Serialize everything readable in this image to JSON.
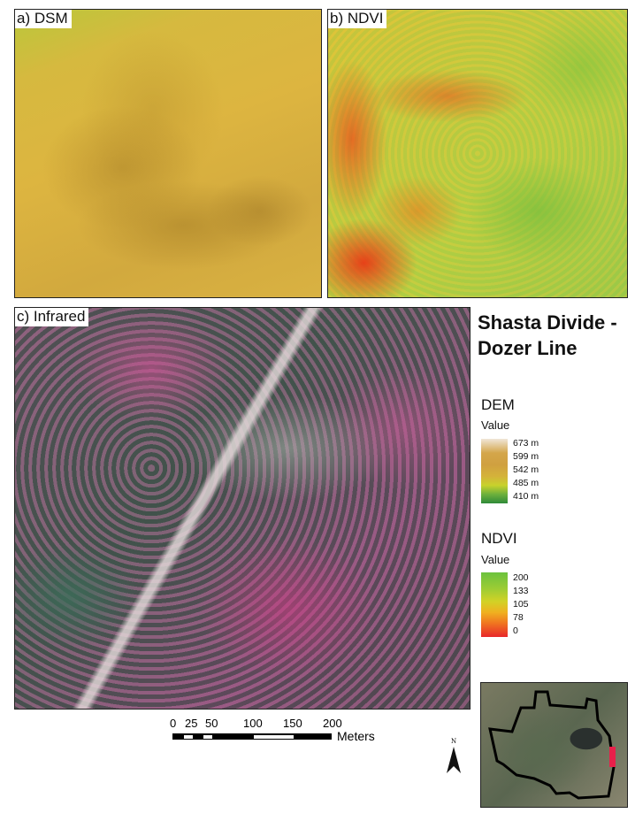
{
  "panels": {
    "dsm_label": "a) DSM",
    "ndvi_label": "b) NDVI",
    "infrared_label": "c) Infrared"
  },
  "title_line1": "Shasta Divide -",
  "title_line2": "Dozer Line",
  "legend": {
    "dem": {
      "title": "DEM",
      "subtitle": "Value",
      "ticks": [
        "673 m",
        "599 m",
        "542 m",
        "485 m",
        "410 m"
      ],
      "colors": [
        "#f0e6d8",
        "#d0a040",
        "#d4b23a",
        "#c9d22c",
        "#2f8a3a"
      ]
    },
    "ndvi": {
      "title": "NDVI",
      "subtitle": "Value",
      "ticks": [
        "200",
        "133",
        "105",
        "78",
        "0"
      ],
      "colors": [
        "#6cc23e",
        "#b5d22c",
        "#e8c020",
        "#f08a20",
        "#e8282a"
      ]
    }
  },
  "scale_bar": {
    "ticks": [
      "0",
      "25",
      "50",
      "100",
      "150",
      "200"
    ],
    "unit": "Meters"
  },
  "north_arrow": {
    "label": "N"
  },
  "inset": {
    "boundary_color": "#000000",
    "study_area_color": "#e8204a"
  }
}
